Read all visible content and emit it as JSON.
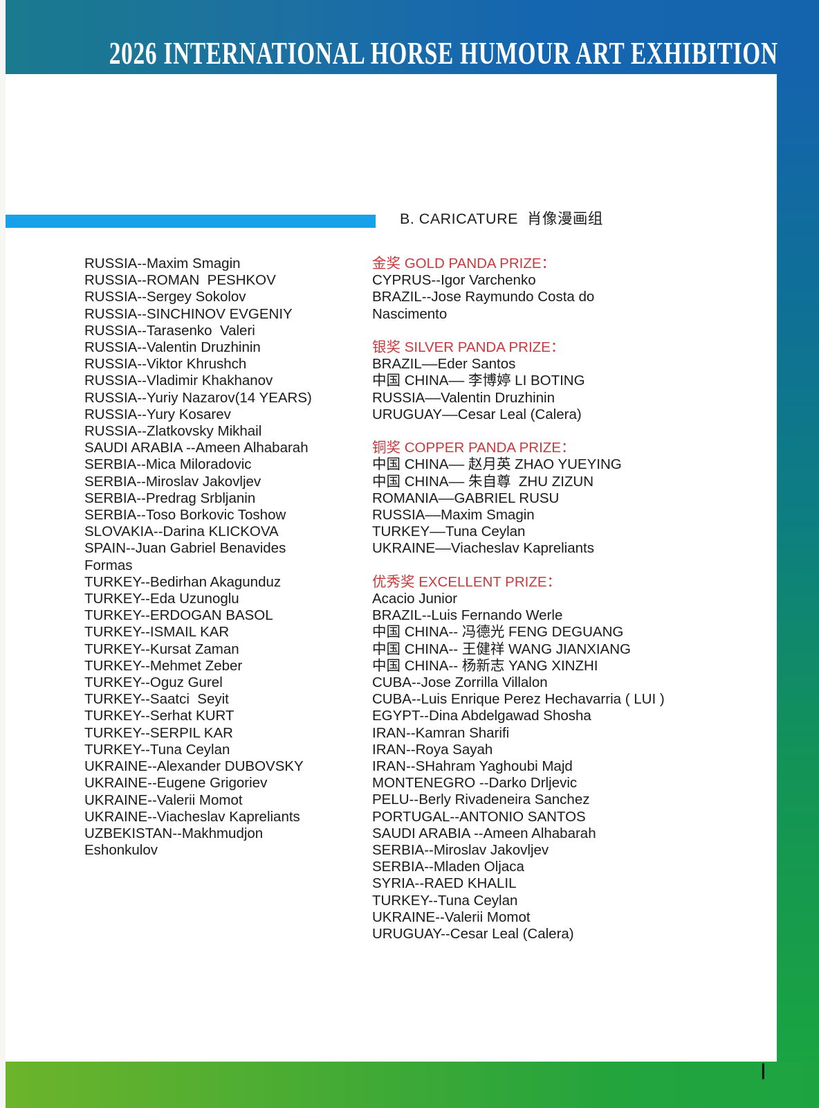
{
  "header": {
    "title": "2026 INTERNATIONAL HORSE HUMOUR ART EXHIBITION"
  },
  "section": {
    "heading": "B. CARICATURE  肖像漫画组"
  },
  "left_column": {
    "lines": [
      "RUSSIA--Maxim Smagin",
      "RUSSIA--ROMAN  PESHKOV",
      "RUSSIA--Sergey Sokolov",
      "RUSSIA--SINCHINOV EVGENIY",
      "RUSSIA--Tarasenko  Valeri",
      "RUSSIA--Valentin Druzhinin",
      "RUSSIA--Viktor Khrushch",
      "RUSSIA--Vladimir Khakhanov",
      "RUSSIA--Yuriy Nazarov(14 YEARS)",
      "RUSSIA--Yury Kosarev",
      "RUSSIA--Zlatkovsky Mikhail",
      "SAUDI ARABIA --Ameen Alhabarah",
      "SERBIA--Mica Miloradovic",
      "SERBIA--Miroslav Jakovljev",
      "SERBIA--Predrag Srbljanin",
      "SERBIA--Toso Borkovic Toshow",
      "SLOVAKIA--Darina KLICKOVA",
      "SPAIN--Juan Gabriel Benavides",
      "Formas",
      "TURKEY--Bedirhan Akagunduz",
      "TURKEY--Eda Uzunoglu",
      "TURKEY--ERDOGAN BASOL",
      "TURKEY--ISMAIL KAR",
      "TURKEY--Kursat Zaman",
      "TURKEY--Mehmet Zeber",
      "TURKEY--Oguz Gurel",
      "TURKEY--Saatci  Seyit",
      "TURKEY--Serhat KURT",
      "TURKEY--SERPIL KAR",
      "TURKEY--Tuna Ceylan",
      "UKRAINE--Alexander DUBOVSKY",
      "UKRAINE--Eugene Grigoriev",
      "UKRAINE--Valerii Momot",
      "UKRAINE--Viacheslav Kapreliants",
      "UZBEKISTAN--Makhmudjon",
      "Eshonkulov"
    ]
  },
  "right_column": {
    "sections": [
      {
        "title": "金奖 GOLD PANDA PRIZE：",
        "lines": [
          "CYPRUS--Igor Varchenko",
          "BRAZIL--Jose Raymundo Costa do",
          "Nascimento"
        ]
      },
      {
        "title": "银奖 SILVER PANDA PRIZE：",
        "lines": [
          "BRAZIL––Eder Santos",
          "中国 CHINA–– 李博婷 LI BOTING",
          "RUSSIA––Valentin Druzhinin",
          "URUGUAY––Cesar Leal (Calera)"
        ]
      },
      {
        "title": "铜奖 COPPER PANDA PRIZE：",
        "lines": [
          "中国 CHINA–– 赵月英 ZHAO YUEYING",
          "中国 CHINA–– 朱自尊  ZHU ZIZUN",
          "ROMANIA––GABRIEL RUSU",
          "RUSSIA––Maxim Smagin",
          "TURKEY––Tuna Ceylan",
          "UKRAINE––Viacheslav Kapreliants"
        ]
      },
      {
        "title": "优秀奖 EXCELLENT PRIZE：",
        "lines": [
          "Acacio Junior",
          "BRAZIL--Luis Fernando Werle",
          "中国 CHINA-- 冯德光 FENG DEGUANG",
          "中国 CHINA-- 王健祥 WANG JIANXIANG",
          "中国 CHINA-- 杨新志 YANG XINZHI",
          "CUBA--Jose Zorrilla Villalon",
          "CUBA--Luis Enrique Perez Hechavarria ( LUI )",
          "EGYPT--Dina Abdelgawad Shosha",
          "IRAN--Kamran Sharifi",
          "IRAN--Roya Sayah",
          "IRAN--SHahram Yaghoubi Majd",
          "MONTENEGRO --Darko Drljevic",
          "PELU--Berly Rivadeneira Sanchez",
          "PORTUGAL--ANTONIO SANTOS",
          "SAUDI ARABIA --Ameen Alhabarah",
          "SERBIA--Miroslav Jakovljev",
          "SERBIA--Mladen Oljaca",
          "SYRIA--RAED KHALIL",
          "TURKEY--Tuna Ceylan",
          "UKRAINE--Valerii Momot",
          "URUGUAY--Cesar Leal (Calera)"
        ]
      }
    ]
  },
  "footer": {
    "page_marker": "|"
  },
  "colors": {
    "banner_teal": "#1a7a8e",
    "banner_blue": "#1464ad",
    "border_green": "#1da441",
    "border_yellow_green": "#6cb42b",
    "section_bar_blue": "#17a1e9",
    "prize_title_red": "#c63a3e",
    "body_text": "#1b1b1b",
    "title_text": "#ffffff"
  }
}
